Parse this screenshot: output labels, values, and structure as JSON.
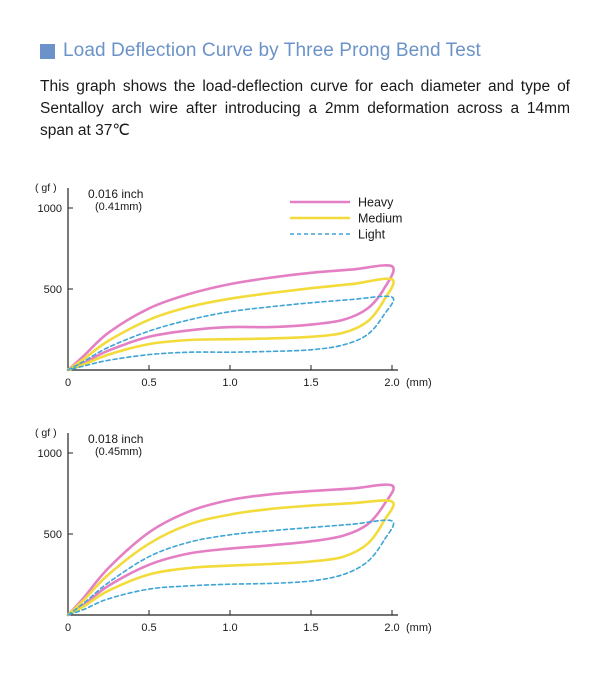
{
  "header": {
    "title": "Load Deflection Curve by Three Prong Bend Test",
    "accent_color": "#6b93c9",
    "title_color": "#6b93c9"
  },
  "description": "This graph shows the load-deflection curve for each diameter and type of Sentalloy arch wire after introducing a 2mm deformation across a 14mm span at 37℃",
  "chart_data": [
    {
      "type": "line",
      "title": "0.016 inch",
      "subtitle": "(0.41mm)",
      "ylabel": "( gf )",
      "xunit": "(mm)",
      "xlim": [
        0,
        2.0
      ],
      "ylim": [
        0,
        1000
      ],
      "xticks": [
        "0",
        "0.5",
        "1.0",
        "1.5",
        "2.0"
      ],
      "yticks": [
        "500",
        "1000"
      ],
      "legend": [
        "Heavy",
        "Medium",
        "Light"
      ],
      "series": [
        {
          "name": "Heavy",
          "color": "#e57fc4",
          "style": "solid",
          "loading": [
            [
              0,
              0
            ],
            [
              0.1,
              90
            ],
            [
              0.25,
              230
            ],
            [
              0.5,
              380
            ],
            [
              0.75,
              470
            ],
            [
              1.0,
              530
            ],
            [
              1.25,
              570
            ],
            [
              1.5,
              600
            ],
            [
              1.75,
              620
            ],
            [
              2.0,
              640
            ]
          ],
          "unloading": [
            [
              2.0,
              640
            ],
            [
              1.95,
              500
            ],
            [
              1.85,
              380
            ],
            [
              1.7,
              310
            ],
            [
              1.5,
              280
            ],
            [
              1.25,
              265
            ],
            [
              1.0,
              265
            ],
            [
              0.75,
              245
            ],
            [
              0.5,
              205
            ],
            [
              0.25,
              120
            ],
            [
              0.1,
              45
            ],
            [
              0,
              0
            ]
          ]
        },
        {
          "name": "Medium",
          "color": "#f2db3b",
          "style": "solid",
          "loading": [
            [
              0,
              0
            ],
            [
              0.1,
              70
            ],
            [
              0.25,
              180
            ],
            [
              0.5,
              310
            ],
            [
              0.75,
              390
            ],
            [
              1.0,
              440
            ],
            [
              1.25,
              475
            ],
            [
              1.5,
              505
            ],
            [
              1.75,
              530
            ],
            [
              2.0,
              560
            ]
          ],
          "unloading": [
            [
              2.0,
              560
            ],
            [
              1.95,
              430
            ],
            [
              1.85,
              300
            ],
            [
              1.7,
              230
            ],
            [
              1.5,
              205
            ],
            [
              1.25,
              195
            ],
            [
              1.0,
              190
            ],
            [
              0.75,
              185
            ],
            [
              0.5,
              160
            ],
            [
              0.25,
              95
            ],
            [
              0.1,
              35
            ],
            [
              0,
              0
            ]
          ]
        },
        {
          "name": "Light",
          "color": "#3fa4d6",
          "style": "dashed",
          "loading": [
            [
              0,
              0
            ],
            [
              0.1,
              55
            ],
            [
              0.25,
              140
            ],
            [
              0.5,
              240
            ],
            [
              0.75,
              310
            ],
            [
              1.0,
              360
            ],
            [
              1.25,
              390
            ],
            [
              1.5,
              415
            ],
            [
              1.75,
              435
            ],
            [
              2.0,
              450
            ]
          ],
          "unloading": [
            [
              2.0,
              450
            ],
            [
              1.95,
              340
            ],
            [
              1.85,
              220
            ],
            [
              1.7,
              155
            ],
            [
              1.5,
              125
            ],
            [
              1.25,
              115
            ],
            [
              1.0,
              110
            ],
            [
              0.75,
              110
            ],
            [
              0.5,
              95
            ],
            [
              0.25,
              60
            ],
            [
              0.1,
              25
            ],
            [
              0,
              0
            ]
          ]
        }
      ]
    },
    {
      "type": "line",
      "title": "0.018 inch",
      "subtitle": "(0.45mm)",
      "ylabel": "( gf )",
      "xunit": "(mm)",
      "xlim": [
        0,
        2.0
      ],
      "ylim": [
        0,
        1000
      ],
      "xticks": [
        "0",
        "0.5",
        "1.0",
        "1.5",
        "2.0"
      ],
      "yticks": [
        "500",
        "1000"
      ],
      "series": [
        {
          "name": "Heavy",
          "color": "#e57fc4",
          "style": "solid",
          "loading": [
            [
              0,
              0
            ],
            [
              0.1,
              110
            ],
            [
              0.25,
              290
            ],
            [
              0.5,
              510
            ],
            [
              0.75,
              640
            ],
            [
              1.0,
              710
            ],
            [
              1.25,
              745
            ],
            [
              1.5,
              765
            ],
            [
              1.75,
              780
            ],
            [
              2.0,
              800
            ]
          ],
          "unloading": [
            [
              2.0,
              800
            ],
            [
              1.95,
              680
            ],
            [
              1.85,
              560
            ],
            [
              1.7,
              490
            ],
            [
              1.5,
              455
            ],
            [
              1.25,
              430
            ],
            [
              1.0,
              410
            ],
            [
              0.75,
              380
            ],
            [
              0.5,
              310
            ],
            [
              0.25,
              180
            ],
            [
              0.1,
              65
            ],
            [
              0,
              0
            ]
          ]
        },
        {
          "name": "Medium",
          "color": "#f2db3b",
          "style": "solid",
          "loading": [
            [
              0,
              0
            ],
            [
              0.1,
              95
            ],
            [
              0.25,
              250
            ],
            [
              0.5,
              440
            ],
            [
              0.75,
              560
            ],
            [
              1.0,
              620
            ],
            [
              1.25,
              655
            ],
            [
              1.5,
              675
            ],
            [
              1.75,
              690
            ],
            [
              2.0,
              700
            ]
          ],
          "unloading": [
            [
              2.0,
              700
            ],
            [
              1.95,
              580
            ],
            [
              1.85,
              440
            ],
            [
              1.7,
              360
            ],
            [
              1.5,
              330
            ],
            [
              1.25,
              315
            ],
            [
              1.0,
              305
            ],
            [
              0.75,
              290
            ],
            [
              0.5,
              250
            ],
            [
              0.25,
              150
            ],
            [
              0.1,
              55
            ],
            [
              0,
              0
            ]
          ]
        },
        {
          "name": "Light",
          "color": "#3fa4d6",
          "style": "dashed",
          "loading": [
            [
              0,
              0
            ],
            [
              0.1,
              75
            ],
            [
              0.25,
              200
            ],
            [
              0.5,
              360
            ],
            [
              0.75,
              450
            ],
            [
              1.0,
              495
            ],
            [
              1.25,
              520
            ],
            [
              1.5,
              540
            ],
            [
              1.75,
              560
            ],
            [
              2.0,
              580
            ]
          ],
          "unloading": [
            [
              2.0,
              580
            ],
            [
              1.95,
              460
            ],
            [
              1.85,
              330
            ],
            [
              1.7,
              250
            ],
            [
              1.5,
              210
            ],
            [
              1.25,
              195
            ],
            [
              1.0,
              190
            ],
            [
              0.75,
              180
            ],
            [
              0.5,
              160
            ],
            [
              0.25,
              100
            ],
            [
              0.1,
              35
            ],
            [
              0,
              0
            ]
          ]
        }
      ]
    }
  ]
}
